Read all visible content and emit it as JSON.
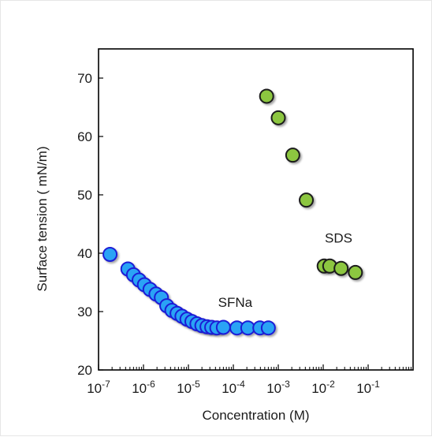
{
  "chart_data": {
    "type": "scatter",
    "xlabel": "Concentration (M)",
    "ylabel": "Surface tension ( mN/m)",
    "xscale": "log",
    "xlim": [
      1e-07,
      1
    ],
    "ylim": [
      20,
      75
    ],
    "yticks": [
      20,
      30,
      40,
      50,
      60,
      70
    ],
    "xticks": [
      {
        "value": 1e-07,
        "base": "10",
        "exp": "-7"
      },
      {
        "value": 1e-06,
        "base": "10",
        "exp": "-6"
      },
      {
        "value": 1e-05,
        "base": "10",
        "exp": "-5"
      },
      {
        "value": 0.0001,
        "base": "10",
        "exp": "-4"
      },
      {
        "value": 0.001,
        "base": "10",
        "exp": "-3"
      },
      {
        "value": 0.01,
        "base": "10",
        "exp": "-2"
      },
      {
        "value": 0.1,
        "base": "10",
        "exp": "-1"
      }
    ],
    "grid": false,
    "series": [
      {
        "name": "SFNa",
        "color": "#29a3f5",
        "stroke": "#1f1fd6",
        "points": [
          {
            "x": 1.8e-07,
            "y": 39.8
          },
          {
            "x": 4.5e-07,
            "y": 37.3
          },
          {
            "x": 6e-07,
            "y": 36.3
          },
          {
            "x": 8e-07,
            "y": 35.4
          },
          {
            "x": 1.05e-06,
            "y": 34.6
          },
          {
            "x": 1.4e-06,
            "y": 33.8
          },
          {
            "x": 1.9e-06,
            "y": 33.0
          },
          {
            "x": 2.5e-06,
            "y": 32.4
          },
          {
            "x": 3.3e-06,
            "y": 31.0
          },
          {
            "x": 4.3e-06,
            "y": 30.2
          },
          {
            "x": 5.6e-06,
            "y": 29.7
          },
          {
            "x": 7.2e-06,
            "y": 29.2
          },
          {
            "x": 9.3e-06,
            "y": 28.7
          },
          {
            "x": 1.2e-05,
            "y": 28.3
          },
          {
            "x": 1.55e-05,
            "y": 27.9
          },
          {
            "x": 2e-05,
            "y": 27.6
          },
          {
            "x": 2.6e-05,
            "y": 27.4
          },
          {
            "x": 3.3e-05,
            "y": 27.3
          },
          {
            "x": 4.3e-05,
            "y": 27.2
          },
          {
            "x": 6e-05,
            "y": 27.3
          },
          {
            "x": 0.00012,
            "y": 27.2
          },
          {
            "x": 0.00021,
            "y": 27.2
          },
          {
            "x": 0.00039,
            "y": 27.2
          },
          {
            "x": 0.0006,
            "y": 27.2
          }
        ]
      },
      {
        "name": "SDS",
        "color": "#8cc63f",
        "stroke": "#1a1a1a",
        "points": [
          {
            "x": 0.00055,
            "y": 66.9
          },
          {
            "x": 0.001,
            "y": 63.2
          },
          {
            "x": 0.0021,
            "y": 56.8
          },
          {
            "x": 0.0042,
            "y": 49.1
          },
          {
            "x": 0.0105,
            "y": 37.8
          },
          {
            "x": 0.014,
            "y": 37.8
          },
          {
            "x": 0.025,
            "y": 37.4
          },
          {
            "x": 0.052,
            "y": 36.7
          }
        ]
      }
    ],
    "annotations": [
      {
        "text": "SFNa",
        "x": 0.00011,
        "y": 30.8
      },
      {
        "text": "SDS",
        "x": 0.022,
        "y": 41.8
      }
    ]
  }
}
